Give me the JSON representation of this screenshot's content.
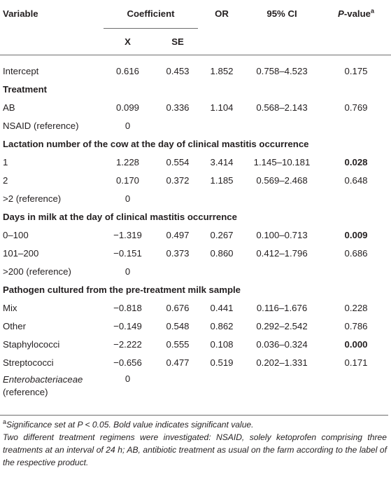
{
  "headers": {
    "variable": "Variable",
    "coefficient": "Coefficient",
    "x": "X",
    "se": "SE",
    "or": "OR",
    "ci": "95% CI",
    "p_main": "P",
    "p_suffix": "-value",
    "p_sup": "a"
  },
  "rows": {
    "intercept": {
      "label": "Intercept",
      "x": "0.616",
      "se": "0.453",
      "or": "1.852",
      "ci": "0.758–4.523",
      "p": "0.175"
    },
    "g_treatment": "Treatment",
    "ab": {
      "label": "AB",
      "x": "0.099",
      "se": "0.336",
      "or": "1.104",
      "ci": "0.568–2.143",
      "p": "0.769"
    },
    "nsaid": {
      "label": "NSAID (reference)",
      "x": "0"
    },
    "g_lactation": "Lactation number of the cow at the day of clinical mastitis occurrence",
    "lac1": {
      "label": "1",
      "x": "1.228",
      "se": "0.554",
      "or": "3.414",
      "ci": "1.145–10.181",
      "p": "0.028"
    },
    "lac2": {
      "label": "2",
      "x": "0.170",
      "se": "0.372",
      "or": "1.185",
      "ci": "0.569–2.468",
      "p": "0.648"
    },
    "lac_ref": {
      "label": ">2 (reference)",
      "x": "0"
    },
    "g_dim": "Days in milk at the day of clinical mastitis occurrence",
    "dim1": {
      "label": "0–100",
      "x": "−1.319",
      "se": "0.497",
      "or": "0.267",
      "ci": "0.100–0.713",
      "p": "0.009"
    },
    "dim2": {
      "label": "101–200",
      "x": "−0.151",
      "se": "0.373",
      "or": "0.860",
      "ci": "0.412–1.796",
      "p": "0.686"
    },
    "dim_ref": {
      "label": ">200 (reference)",
      "x": "0"
    },
    "g_pathogen": "Pathogen cultured from the pre-treatment milk sample",
    "mix": {
      "label": "Mix",
      "x": "−0.818",
      "se": "0.676",
      "or": "0.441",
      "ci": "0.116–1.676",
      "p": "0.228"
    },
    "other": {
      "label": "Other",
      "x": "−0.149",
      "se": "0.548",
      "or": "0.862",
      "ci": "0.292–2.542",
      "p": "0.786"
    },
    "staph": {
      "label": "Staphylococci",
      "x": "−2.222",
      "se": "0.555",
      "or": "0.108",
      "ci": "0.036–0.324",
      "p": "0.000"
    },
    "strep": {
      "label": "Streptococci",
      "x": "−0.656",
      "se": "0.477",
      "or": "0.519",
      "ci": "0.202–1.331",
      "p": "0.171"
    },
    "entero": {
      "label_italic": "Enterobacteriaceae",
      "label_rest": "(reference)",
      "x": "0"
    }
  },
  "notes": {
    "sup": "a",
    "note1": "Significance set at P < 0.05. Bold value indicates significant value.",
    "note2": "Two different treatment regimens were investigated: NSAID, solely ketoprofen comprising three treatments at an interval of 24 h; AB, antibiotic treatment as usual on the farm according to the label of the respective product."
  }
}
